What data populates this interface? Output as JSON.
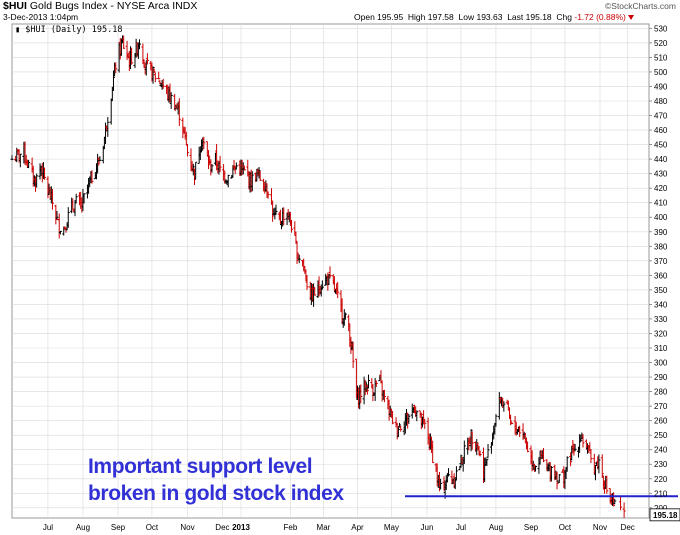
{
  "header": {
    "symbol": "$HUI",
    "name": "Gold Bugs Index - NYSE Arca INDX",
    "date": "3-Dec-2013 1:04pm",
    "brand": "©StockCharts.com",
    "open_label": "Open",
    "open": "195.95",
    "high_label": "High",
    "high": "197.58",
    "low_label": "Low",
    "low": "193.63",
    "last_label": "Last",
    "last": "195.18",
    "chg_label": "Chg",
    "chg": "-1.72 (0.88%)"
  },
  "legend": {
    "text": "$HUI (Daily) 195.18"
  },
  "annotation": {
    "line1": "Important support level",
    "line2": "broken in gold stock index"
  },
  "colors": {
    "up": "#000000",
    "down": "#cc0000",
    "support": "#2222cc",
    "text_accent": "#3131d6",
    "grid": "#d9d9d9"
  },
  "chart_data": {
    "type": "ohlc",
    "title": "$HUI (Daily) 195.18",
    "x_labels": [
      "Jul",
      "Aug",
      "Sep",
      "Oct",
      "Nov",
      "Dec",
      "2013",
      "Feb",
      "Mar",
      "Apr",
      "May",
      "Jun",
      "Jul",
      "Aug",
      "Sep",
      "Oct",
      "Nov",
      "Dec"
    ],
    "y_ticks": [
      200,
      210,
      220,
      230,
      240,
      250,
      260,
      270,
      280,
      290,
      300,
      310,
      320,
      330,
      340,
      350,
      360,
      370,
      380,
      390,
      400,
      410,
      420,
      430,
      440,
      450,
      460,
      470,
      480,
      490,
      500,
      510,
      520,
      530
    ],
    "ylim": [
      193,
      533
    ],
    "y_axis_side": "right",
    "grid": true,
    "last_value_label": "195.18",
    "support_level": 208,
    "close_path": [
      [
        "2012-06-15",
        440
      ],
      [
        "2012-06-25",
        445
      ],
      [
        "2012-07-01",
        430
      ],
      [
        "2012-07-05",
        425
      ],
      [
        "2012-07-10",
        435
      ],
      [
        "2012-07-15",
        420
      ],
      [
        "2012-07-20",
        410
      ],
      [
        "2012-07-25",
        395
      ],
      [
        "2012-07-30",
        392
      ],
      [
        "2012-08-05",
        405
      ],
      [
        "2012-08-10",
        410
      ],
      [
        "2012-08-15",
        408
      ],
      [
        "2012-08-20",
        420
      ],
      [
        "2012-08-25",
        430
      ],
      [
        "2012-08-31",
        440
      ],
      [
        "2012-09-04",
        455
      ],
      [
        "2012-09-07",
        470
      ],
      [
        "2012-09-12",
        495
      ],
      [
        "2012-09-15",
        510
      ],
      [
        "2012-09-20",
        520
      ],
      [
        "2012-09-26",
        508
      ],
      [
        "2012-10-02",
        515
      ],
      [
        "2012-10-05",
        522
      ],
      [
        "2012-10-10",
        505
      ],
      [
        "2012-10-15",
        500
      ],
      [
        "2012-10-22",
        495
      ],
      [
        "2012-10-30",
        485
      ],
      [
        "2012-11-05",
        478
      ],
      [
        "2012-11-10",
        470
      ],
      [
        "2012-11-16",
        445
      ],
      [
        "2012-11-22",
        430
      ],
      [
        "2012-11-28",
        455
      ],
      [
        "2012-12-05",
        435
      ],
      [
        "2012-12-10",
        440
      ],
      [
        "2012-12-15",
        430
      ],
      [
        "2012-12-20",
        428
      ],
      [
        "2012-12-28",
        435
      ],
      [
        "2013-01-05",
        430
      ],
      [
        "2013-01-10",
        425
      ],
      [
        "2013-01-15",
        430
      ],
      [
        "2013-01-20",
        425
      ],
      [
        "2013-01-25",
        420
      ],
      [
        "2013-01-30",
        400
      ],
      [
        "2013-02-05",
        398
      ],
      [
        "2013-02-10",
        405
      ],
      [
        "2013-02-15",
        395
      ],
      [
        "2013-02-20",
        375
      ],
      [
        "2013-02-25",
        370
      ],
      [
        "2013-03-01",
        355
      ],
      [
        "2013-03-05",
        345
      ],
      [
        "2013-03-10",
        350
      ],
      [
        "2013-03-15",
        355
      ],
      [
        "2013-03-20",
        358
      ],
      [
        "2013-03-25",
        352
      ],
      [
        "2013-03-30",
        342
      ],
      [
        "2013-04-03",
        332
      ],
      [
        "2013-04-08",
        325
      ],
      [
        "2013-04-12",
        300
      ],
      [
        "2013-04-15",
        275
      ],
      [
        "2013-04-20",
        280
      ],
      [
        "2013-04-25",
        285
      ],
      [
        "2013-05-01",
        282
      ],
      [
        "2013-05-05",
        288
      ],
      [
        "2013-05-10",
        275
      ],
      [
        "2013-05-15",
        265
      ],
      [
        "2013-05-20",
        255
      ],
      [
        "2013-05-25",
        258
      ],
      [
        "2013-05-30",
        262
      ],
      [
        "2013-06-05",
        270
      ],
      [
        "2013-06-10",
        260
      ],
      [
        "2013-06-15",
        255
      ],
      [
        "2013-06-20",
        240
      ],
      [
        "2013-06-25",
        220
      ],
      [
        "2013-06-28",
        212
      ],
      [
        "2013-07-05",
        222
      ],
      [
        "2013-07-10",
        220
      ],
      [
        "2013-07-15",
        230
      ],
      [
        "2013-07-20",
        240
      ],
      [
        "2013-07-25",
        250
      ],
      [
        "2013-07-30",
        245
      ],
      [
        "2013-08-05",
        225
      ],
      [
        "2013-08-10",
        240
      ],
      [
        "2013-08-15",
        260
      ],
      [
        "2013-08-20",
        275
      ],
      [
        "2013-08-25",
        270
      ],
      [
        "2013-08-30",
        255
      ],
      [
        "2013-09-05",
        255
      ],
      [
        "2013-09-10",
        250
      ],
      [
        "2013-09-15",
        235
      ],
      [
        "2013-09-20",
        230
      ],
      [
        "2013-09-25",
        235
      ],
      [
        "2013-09-30",
        225
      ],
      [
        "2013-10-05",
        228
      ],
      [
        "2013-10-10",
        220
      ],
      [
        "2013-10-15",
        222
      ],
      [
        "2013-10-20",
        235
      ],
      [
        "2013-10-25",
        240
      ],
      [
        "2013-10-30",
        250
      ],
      [
        "2013-11-05",
        240
      ],
      [
        "2013-11-10",
        228
      ],
      [
        "2013-11-15",
        232
      ],
      [
        "2013-11-20",
        218
      ],
      [
        "2013-11-25",
        205
      ],
      [
        "2013-11-30",
        200
      ],
      [
        "2013-12-03",
        195
      ]
    ]
  }
}
